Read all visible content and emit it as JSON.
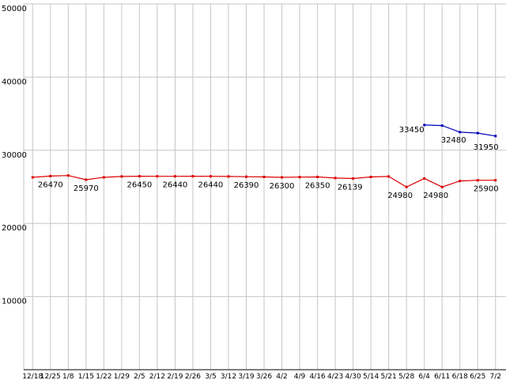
{
  "chart_data": {
    "type": "line",
    "title": "",
    "xlabel": "",
    "ylabel": "",
    "ylim": [
      0,
      50000
    ],
    "y_tick_step": 10000,
    "y_tick_labels": [
      "10000",
      "20000",
      "30000",
      "40000",
      "50000"
    ],
    "grid": true,
    "background": "#ffffff",
    "grid_color": "#c6c6c6",
    "axis_color": "#000000",
    "label_color": "#000000",
    "x_labels": [
      "12/18",
      "12/25",
      "1/8",
      "1/15",
      "1/22",
      "1/29",
      "2/5",
      "2/12",
      "2/19",
      "2/26",
      "3/5",
      "3/12",
      "3/19",
      "3/26",
      "4/2",
      "4/9",
      "4/16",
      "4/23",
      "4/30",
      "5/14",
      "5/21",
      "5/28",
      "6/4",
      "6/11",
      "6/18",
      "6/25",
      "7/2"
    ],
    "series": [
      {
        "name": "price-series-red",
        "color": "#dd0000",
        "start_index": 0,
        "values": [
          26300,
          26470,
          26550,
          25970,
          26300,
          26420,
          26450,
          26440,
          26440,
          26450,
          26440,
          26420,
          26390,
          26350,
          26300,
          26330,
          26350,
          26200,
          26139,
          26350,
          26420,
          24980,
          26150,
          24980,
          25800,
          25900,
          25900
        ],
        "point_labels": [
          {
            "index": 1,
            "text": "26470"
          },
          {
            "index": 3,
            "text": "25970"
          },
          {
            "index": 6,
            "text": "26450"
          },
          {
            "index": 8,
            "text": "26440"
          },
          {
            "index": 10,
            "text": "26440"
          },
          {
            "index": 12,
            "text": "26390"
          },
          {
            "index": 14,
            "text": "26300"
          },
          {
            "index": 16,
            "text": "26350"
          },
          {
            "index": 18,
            "text": "26139",
            "dx": -4
          },
          {
            "index": 21,
            "text": "24980",
            "dx": -8
          },
          {
            "index": 23,
            "text": "24980",
            "dx": -8
          },
          {
            "index": 26,
            "text": "25900",
            "dx": -12
          }
        ]
      },
      {
        "name": "price-series-blue",
        "color": "#0000bb",
        "start_index": 22,
        "values": [
          33450,
          33380,
          32480,
          32350,
          31950
        ],
        "point_labels": [
          {
            "index": 22,
            "text": "33450",
            "dx": -16,
            "dy": 9
          },
          {
            "index": 24,
            "text": "32480",
            "dx": -8,
            "dy": 13
          },
          {
            "index": 26,
            "text": "31950",
            "dx": -12,
            "dy": 17
          }
        ]
      }
    ]
  }
}
